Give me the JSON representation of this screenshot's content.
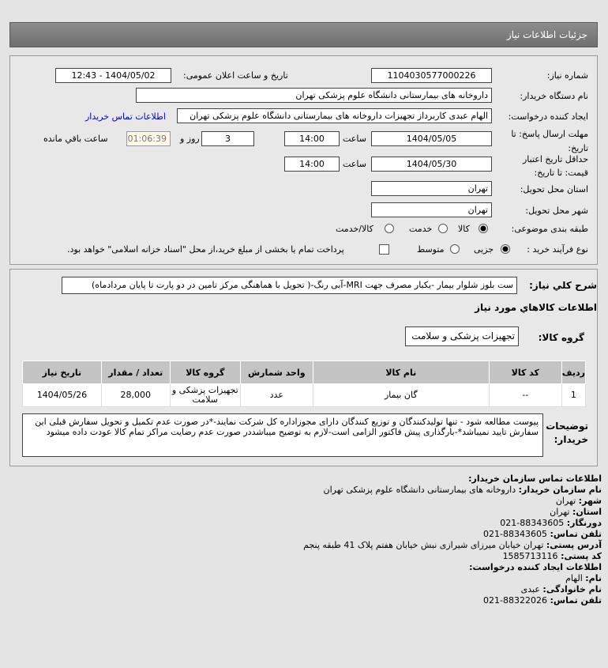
{
  "header": {
    "title": "جزئیات اطلاعات نیاز"
  },
  "form": {
    "need_number_label": "شماره نیاز:",
    "need_number": "1104030577000226",
    "announce_label": "تاریخ و ساعت اعلان عمومی:",
    "announce_value": "1404/05/02 - 12:43",
    "buyer_org_label": "نام دستگاه خریدار:",
    "buyer_org": "داروخانه های بیمارستانی دانشگاه علوم پزشکی تهران",
    "creator_label": "ایجاد کننده درخواست:",
    "creator": "الهام عبدی کاربرداز تجهیزات داروخانه های بیمارستانی دانشگاه علوم پزشکی تهران",
    "contact_link": "اطلاعات تماس خریدار",
    "deadline_label_1": "مهلت ارسال پاسخ: تا",
    "deadline_label_2": "تاریخ:",
    "deadline_date": "1404/05/05",
    "time_label": "ساعت",
    "deadline_time": "14:00",
    "days": "3",
    "days_label": "روز و",
    "remaining": "01:06:39",
    "remaining_label": "ساعت باقي مانده",
    "validity_label_1": "حداقل تاریخ اعتبار",
    "validity_label_2": "قیمت: تا تاریخ:",
    "validity_date": "1404/05/30",
    "validity_time": "14:00",
    "province_label": "استان محل تحویل:",
    "province": "تهران",
    "city_label": "شهر محل تحویل:",
    "city": "تهران",
    "category_label": "طبقه بندی موضوعی:",
    "category_options": [
      "کالا",
      "خدمت",
      "کالا/خدمت"
    ],
    "category_selected": "کالا",
    "process_label": "نوع فرآیند خرید :",
    "process_options": [
      "جزیی",
      "متوسط"
    ],
    "process_selected": "جزیی",
    "payment_note": "پرداخت تمام یا بخشی از مبلغ خرید،از محل \"اسناد خزانه اسلامی\" خواهد بود."
  },
  "details": {
    "summary_label": "شرح کلي نياز:",
    "summary": "ست بلوز شلوار بیمار -یکبار مصرف جهت MRI-آبی رنگ-( تحویل با هماهنگی مرکز تامین در دو پارت تا پایان مردادماه)",
    "goods_title": "اطلاعات کالاهاي مورد نياز",
    "group_label": "گروه کالا:",
    "group": "تجهیزات پزشکی و سلامت",
    "table": {
      "headers": [
        "ردیف",
        "کد کالا",
        "نام کالا",
        "واحد شمارش",
        "گروه کالا",
        "تعداد / مقدار",
        "تاریخ نیاز"
      ],
      "rows": [
        [
          "1",
          "--",
          "گان بیمار",
          "عدد",
          "تجهیزات پزشکی و سلامت",
          "28,000",
          "1404/05/26"
        ]
      ]
    },
    "notes_label_1": "توضیحات",
    "notes_label_2": "خریدار:",
    "notes": "پیوست مطالعه شود - تنها تولیدکنندگان و توزیع کنندگان دارای مجوزاداره کل شرکت نمایند-*در صورت عدم تکمیل و تحویل سفارش قبلی این سفارش تایید نمیباشد*-بارگذاری پیش فاکتور الزامی است-لازم به توضیح میباشددر صورت عدم رضایت مراکز تمام کالا عودت داده میشود"
  },
  "contact": {
    "title": "اطلاعات تماس سازمان خریدار:",
    "items": [
      {
        "k": "نام سازمان خریدار:",
        "v": "داروخانه های بیمارستانی دانشگاه علوم پزشکی تهران"
      },
      {
        "k": "شهر:",
        "v": "تهران"
      },
      {
        "k": "استان:",
        "v": "تهران"
      },
      {
        "k": "دورنگار:",
        "v": "88343605-021"
      },
      {
        "k": "تلفن تماس:",
        "v": "88343605-021"
      },
      {
        "k": "آدرس پستی:",
        "v": "تهران خیابان میرزای شیرازی نبش خیابان هفتم پلاک 41 طبقه پنجم"
      },
      {
        "k": "کد پستی:",
        "v": "1585713116"
      }
    ],
    "creator_title": "اطلاعات ایجاد کننده درخواست:",
    "creator_items": [
      {
        "k": "نام:",
        "v": "الهام"
      },
      {
        "k": "نام خانوادگی:",
        "v": "عبدی"
      },
      {
        "k": "تلفن تماس:",
        "v": "88322026-021"
      }
    ]
  },
  "colors": {
    "header": "#7a7a7a",
    "link": "#0000cc",
    "remaining_bg": "#fffbe6"
  }
}
